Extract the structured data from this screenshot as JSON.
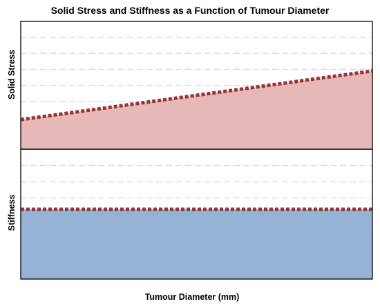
{
  "chart_data": {
    "type": "area",
    "title": "Solid Stress and Stiffness as a Function of Tumour Diameter",
    "xlabel": "Tumour Diameter (mm)",
    "x_range": [
      0,
      1
    ],
    "grid": true,
    "legend": "none",
    "panels": [
      {
        "ylabel": "Solid Stress",
        "ylim": [
          0,
          8
        ],
        "gridlines": [
          1,
          2,
          3,
          4,
          5,
          6,
          7
        ],
        "fill_color": "#e6b8b7",
        "line_color": "#943634",
        "series": [
          {
            "x": [
              0,
              1
            ],
            "y": [
              1.85,
              4.9
            ]
          }
        ]
      },
      {
        "ylabel": "Stiffness",
        "ylim": [
          0,
          8
        ],
        "gridlines": [
          1,
          2,
          3,
          4,
          5,
          6,
          7
        ],
        "fill_color": "#95b3d7",
        "line_color": "#943634",
        "series": [
          {
            "x": [
              0,
              1
            ],
            "y": [
              4.3,
              4.3
            ]
          }
        ]
      }
    ]
  },
  "colors": {
    "gridline": "#d9d9d9",
    "border": "#000000",
    "text": "#000000"
  }
}
